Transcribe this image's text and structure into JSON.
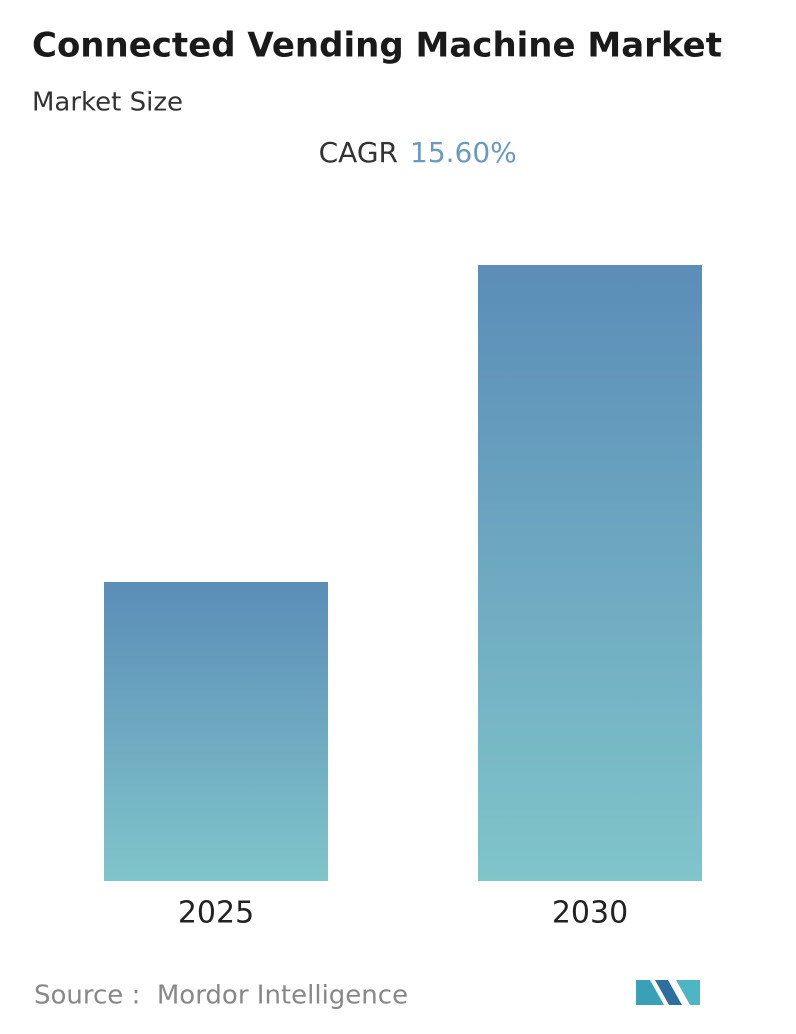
{
  "chart_data": {
    "type": "bar",
    "title": "Connected Vending Machine Market",
    "subtitle": "Market Size",
    "cagr_label": "CAGR",
    "cagr_value": "15.60%",
    "categories": [
      "2025",
      "2030"
    ],
    "values": [
      1,
      2.06
    ],
    "gradient": [
      "#5b8db8",
      "#80c5ca"
    ],
    "source": "Source :  Mordor Intelligence"
  }
}
